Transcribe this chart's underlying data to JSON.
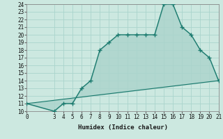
{
  "xlabel": "Humidex (Indice chaleur)",
  "bg_color": "#cce8e0",
  "grid_color": "#aad4cc",
  "line_color": "#1a7a6e",
  "xlim": [
    0,
    21
  ],
  "ylim": [
    10,
    24
  ],
  "xticks": [
    0,
    3,
    4,
    5,
    6,
    7,
    8,
    9,
    10,
    11,
    12,
    13,
    14,
    15,
    16,
    17,
    18,
    19,
    20,
    21
  ],
  "yticks": [
    10,
    11,
    12,
    13,
    14,
    15,
    16,
    17,
    18,
    19,
    20,
    21,
    22,
    23,
    24
  ],
  "curve_x": [
    0,
    3,
    4,
    5,
    6,
    7,
    8,
    9,
    10,
    11,
    12,
    13,
    14,
    15,
    16,
    17,
    18,
    19,
    20,
    21
  ],
  "curve_y": [
    11,
    10,
    11,
    11,
    13,
    14,
    18,
    19,
    20,
    20,
    20,
    20,
    20,
    24,
    24,
    21,
    20,
    18,
    17,
    14
  ],
  "baseline_x": [
    0,
    21
  ],
  "baseline_y": [
    11,
    14
  ]
}
